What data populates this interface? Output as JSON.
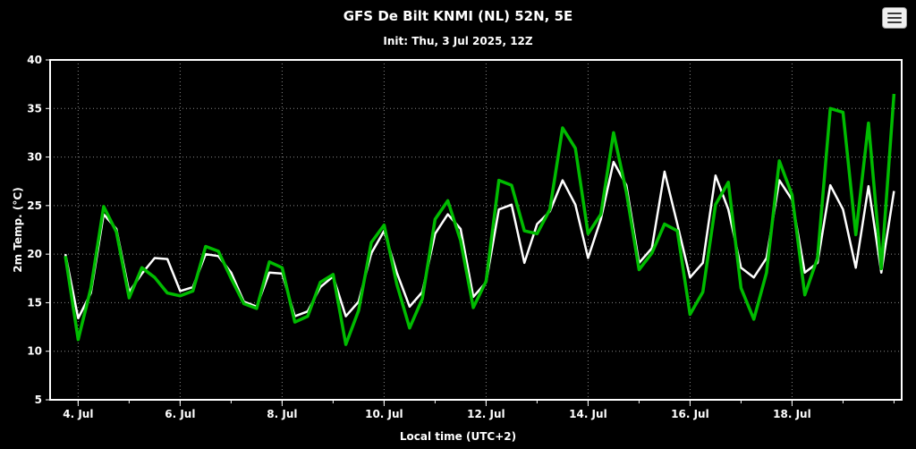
{
  "chart_data": {
    "type": "line",
    "title": "GFS De Bilt KNMI (NL) 52N, 5E",
    "subtitle": "Init: Thu, 3 Jul 2025, 12Z",
    "xlabel": "Local time (UTC+2)",
    "ylabel": "2m Temp. (°C)",
    "background": "#000000",
    "plot_border_color": "#ffffff",
    "grid": "dotted",
    "legend": "none",
    "ylim": [
      5,
      40
    ],
    "yticks": [
      5,
      10,
      15,
      20,
      25,
      30,
      35,
      40
    ],
    "xlim": [
      -0.55,
      16.15
    ],
    "x_unit": "days after 4 Jul 00:00 local",
    "xticks": [
      {
        "value": 0,
        "label": "4. Jul"
      },
      {
        "value": 2,
        "label": "6. Jul"
      },
      {
        "value": 4,
        "label": "8. Jul"
      },
      {
        "value": 6,
        "label": "10. Jul"
      },
      {
        "value": 8,
        "label": "12. Jul"
      },
      {
        "value": 10,
        "label": "14. Jul"
      },
      {
        "value": 12,
        "label": "16. Jul"
      },
      {
        "value": 14,
        "label": "18. Jul"
      }
    ],
    "x_start": -0.25,
    "x_step": 0.25,
    "series": [
      {
        "name": "white",
        "color": "#ffffff",
        "width": 2.5,
        "values": [
          20.0,
          13.4,
          16.0,
          24.1,
          22.6,
          16.1,
          18.0,
          19.6,
          19.5,
          16.2,
          16.6,
          20.0,
          19.8,
          18.1,
          15.1,
          14.6,
          18.1,
          18.0,
          13.6,
          14.1,
          16.6,
          17.7,
          13.6,
          15.1,
          20.1,
          22.4,
          18.1,
          14.6,
          16.1,
          22.1,
          24.1,
          22.6,
          15.6,
          17.1,
          24.6,
          25.1,
          19.1,
          23.1,
          24.4,
          27.6,
          25.1,
          19.6,
          23.6,
          29.5,
          27.1,
          19.1,
          20.6,
          28.5,
          23.1,
          17.6,
          19.1,
          28.1,
          24.6,
          18.6,
          17.6,
          19.6,
          27.6,
          25.6,
          18.1,
          19.1,
          27.1,
          24.6,
          18.6,
          27.0,
          18.1,
          26.5
        ]
      },
      {
        "name": "green",
        "color": "#00bb00",
        "width": 3.5,
        "values": [
          19.8,
          11.2,
          16.5,
          24.9,
          22.3,
          15.5,
          18.6,
          17.6,
          16.0,
          15.7,
          16.2,
          20.8,
          20.3,
          17.5,
          14.9,
          14.4,
          19.2,
          18.6,
          13.0,
          13.6,
          17.1,
          17.9,
          10.7,
          14.2,
          21.2,
          23.0,
          16.9,
          12.4,
          15.4,
          23.6,
          25.5,
          21.4,
          14.5,
          17.2,
          27.6,
          27.1,
          22.4,
          22.1,
          24.6,
          33.0,
          30.9,
          22.1,
          24.1,
          32.5,
          26.4,
          18.4,
          20.1,
          23.1,
          22.4,
          13.8,
          16.1,
          25.1,
          27.4,
          16.5,
          13.3,
          18.1,
          29.6,
          26.1,
          15.8,
          19.6,
          35.0,
          34.6,
          22.0,
          33.5,
          18.5,
          36.5
        ]
      }
    ]
  },
  "menu_button": {
    "icon": "hamburger-menu-icon"
  }
}
